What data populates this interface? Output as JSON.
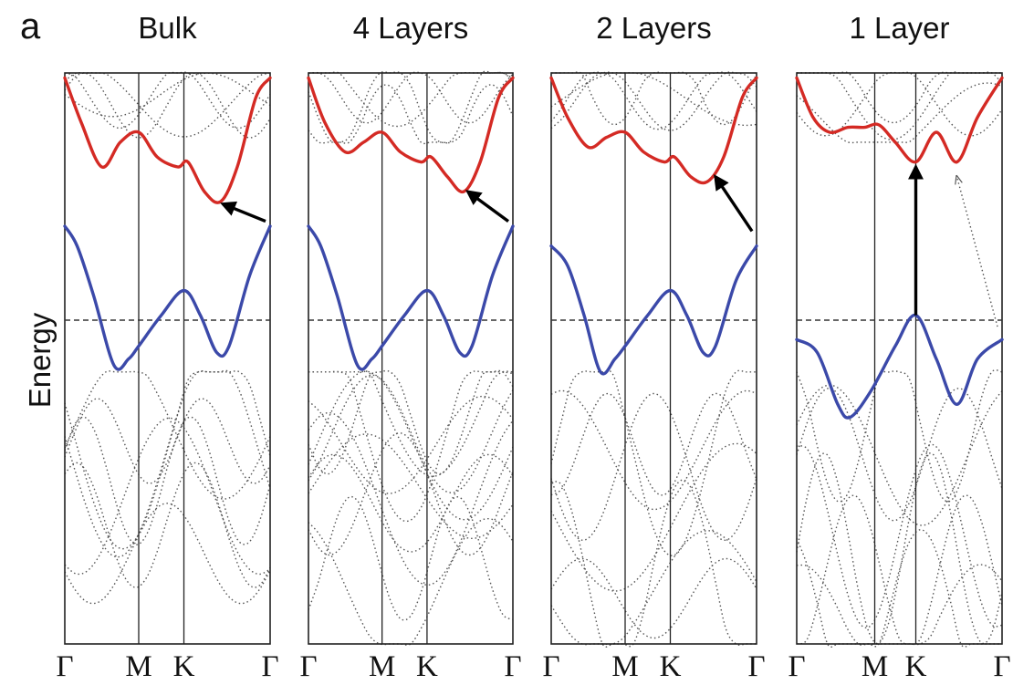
{
  "figure": {
    "panel_label": "a",
    "ylabel": "Energy"
  },
  "colors": {
    "conduction_band": "#d42a24",
    "valence_band": "#3b49a9",
    "other_bands": "#555555",
    "fermi_line": "#333333",
    "arrow": "#000000"
  },
  "chart_data": [
    {
      "type": "line",
      "title": "Bulk",
      "xlabel": "",
      "ylabel": "Energy",
      "x_ticks": [
        "Γ",
        "M",
        "K",
        "Γ"
      ],
      "x_tick_positions": [
        0,
        0.36,
        0.58,
        1
      ],
      "xlim": [
        0,
        1
      ],
      "ylim": [
        -1,
        1
      ],
      "fermi_level": 0,
      "series": [
        {
          "values": [
            [
              0,
              0.98
            ],
            [
              0.08,
              0.8
            ],
            [
              0.18,
              0.62
            ],
            [
              0.27,
              0.72
            ],
            [
              0.36,
              0.76
            ],
            [
              0.45,
              0.66
            ],
            [
              0.55,
              0.62
            ],
            [
              0.6,
              0.64
            ],
            [
              0.68,
              0.52
            ],
            [
              0.76,
              0.48
            ],
            [
              0.84,
              0.62
            ],
            [
              0.93,
              0.9
            ],
            [
              1,
              0.98
            ]
          ]
        },
        {
          "values": [
            [
              0,
              0.38
            ],
            [
              0.06,
              0.3
            ],
            [
              0.14,
              0.1
            ],
            [
              0.24,
              -0.14
            ],
            [
              0.31,
              -0.12
            ],
            [
              0.36,
              -0.08
            ],
            [
              0.47,
              0.02
            ],
            [
              0.58,
              0.12
            ],
            [
              0.66,
              0.02
            ],
            [
              0.74,
              -0.1
            ],
            [
              0.8,
              -0.08
            ],
            [
              0.9,
              0.18
            ],
            [
              1,
              0.38
            ]
          ]
        }
      ],
      "annotations": [
        {
          "type": "arrow",
          "from": [
            1,
            0.4
          ],
          "to": [
            0.77,
            0.47
          ]
        }
      ]
    },
    {
      "type": "line",
      "title": "4 Layers",
      "xlabel": "",
      "ylabel": "Energy",
      "x_ticks": [
        "Γ",
        "M",
        "K",
        "Γ"
      ],
      "x_tick_positions": [
        0,
        0.36,
        0.58,
        1
      ],
      "xlim": [
        0,
        1
      ],
      "ylim": [
        -1,
        1
      ],
      "fermi_level": 0,
      "series": [
        {
          "values": [
            [
              0,
              0.98
            ],
            [
              0.08,
              0.8
            ],
            [
              0.18,
              0.68
            ],
            [
              0.27,
              0.72
            ],
            [
              0.36,
              0.76
            ],
            [
              0.45,
              0.68
            ],
            [
              0.55,
              0.64
            ],
            [
              0.6,
              0.66
            ],
            [
              0.68,
              0.58
            ],
            [
              0.76,
              0.52
            ],
            [
              0.84,
              0.64
            ],
            [
              0.93,
              0.9
            ],
            [
              1,
              0.98
            ]
          ]
        },
        {
          "values": [
            [
              0,
              0.38
            ],
            [
              0.06,
              0.3
            ],
            [
              0.14,
              0.1
            ],
            [
              0.24,
              -0.14
            ],
            [
              0.31,
              -0.12
            ],
            [
              0.36,
              -0.08
            ],
            [
              0.47,
              0.02
            ],
            [
              0.58,
              0.12
            ],
            [
              0.66,
              0.02
            ],
            [
              0.74,
              -0.1
            ],
            [
              0.8,
              -0.08
            ],
            [
              0.9,
              0.18
            ],
            [
              1,
              0.38
            ]
          ]
        }
      ],
      "annotations": [
        {
          "type": "arrow",
          "from": [
            1,
            0.4
          ],
          "to": [
            0.78,
            0.52
          ]
        }
      ]
    },
    {
      "type": "line",
      "title": "2 Layers",
      "xlabel": "",
      "ylabel": "Energy",
      "x_ticks": [
        "Γ",
        "M",
        "K",
        "Γ"
      ],
      "x_tick_positions": [
        0,
        0.36,
        0.58,
        1
      ],
      "xlim": [
        0,
        1
      ],
      "ylim": [
        -1,
        1
      ],
      "fermi_level": 0,
      "series": [
        {
          "values": [
            [
              0,
              0.98
            ],
            [
              0.08,
              0.82
            ],
            [
              0.18,
              0.7
            ],
            [
              0.27,
              0.74
            ],
            [
              0.36,
              0.76
            ],
            [
              0.45,
              0.68
            ],
            [
              0.55,
              0.64
            ],
            [
              0.6,
              0.66
            ],
            [
              0.68,
              0.58
            ],
            [
              0.76,
              0.56
            ],
            [
              0.84,
              0.66
            ],
            [
              0.93,
              0.9
            ],
            [
              1,
              0.98
            ]
          ]
        },
        {
          "values": [
            [
              0,
              0.3
            ],
            [
              0.08,
              0.22
            ],
            [
              0.16,
              0.02
            ],
            [
              0.24,
              -0.16
            ],
            [
              0.31,
              -0.12
            ],
            [
              0.36,
              -0.08
            ],
            [
              0.47,
              0.02
            ],
            [
              0.58,
              0.12
            ],
            [
              0.66,
              0.02
            ],
            [
              0.74,
              -0.1
            ],
            [
              0.8,
              -0.08
            ],
            [
              0.9,
              0.16
            ],
            [
              1,
              0.3
            ]
          ]
        }
      ],
      "annotations": [
        {
          "type": "arrow",
          "from": [
            1,
            0.36
          ],
          "to": [
            0.8,
            0.58
          ]
        }
      ]
    },
    {
      "type": "line",
      "title": "1 Layer",
      "xlabel": "",
      "ylabel": "Energy",
      "x_ticks": [
        "Γ",
        "M",
        "K",
        "Γ"
      ],
      "x_tick_positions": [
        0,
        0.38,
        0.58,
        1
      ],
      "xlim": [
        0,
        1
      ],
      "ylim": [
        -1,
        1
      ],
      "fermi_level": 0,
      "series": [
        {
          "values": [
            [
              0,
              0.98
            ],
            [
              0.08,
              0.82
            ],
            [
              0.16,
              0.76
            ],
            [
              0.25,
              0.78
            ],
            [
              0.33,
              0.78
            ],
            [
              0.4,
              0.79
            ],
            [
              0.48,
              0.72
            ],
            [
              0.58,
              0.64
            ],
            [
              0.68,
              0.76
            ],
            [
              0.78,
              0.64
            ],
            [
              0.88,
              0.82
            ],
            [
              1,
              0.98
            ]
          ]
        },
        {
          "values": [
            [
              0,
              -0.06
            ],
            [
              0.1,
              -0.1
            ],
            [
              0.2,
              -0.26
            ],
            [
              0.26,
              -0.3
            ],
            [
              0.36,
              -0.22
            ],
            [
              0.48,
              -0.08
            ],
            [
              0.58,
              0.02
            ],
            [
              0.68,
              -0.12
            ],
            [
              0.78,
              -0.26
            ],
            [
              0.88,
              -0.12
            ],
            [
              1,
              -0.06
            ]
          ]
        }
      ],
      "annotations": [
        {
          "type": "arrow",
          "from": [
            0.58,
            0.02
          ],
          "to": [
            0.58,
            0.62
          ]
        },
        {
          "type": "arrow",
          "style": "dotted",
          "from": [
            1,
            -0.02
          ],
          "to": [
            0.78,
            0.58
          ]
        }
      ]
    }
  ]
}
